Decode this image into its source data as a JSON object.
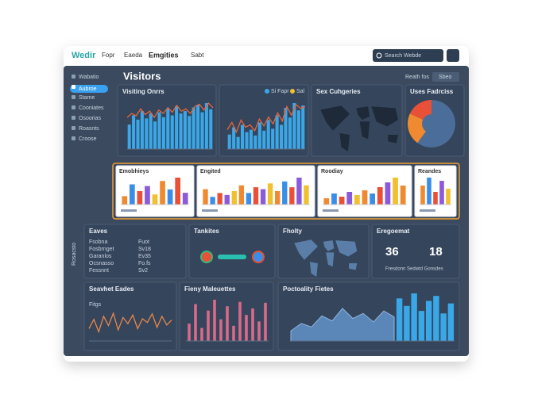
{
  "topbar": {
    "logo": "Wedir",
    "nav": [
      "Fopr",
      "Eaeda",
      "Emgities",
      "Sabt"
    ],
    "search": "Search Webde"
  },
  "sidebar": {
    "items": [
      "Wabatio",
      "Aubroe",
      "Stame",
      "Cooniates",
      "Osoorias",
      "Roasnts",
      "Croose"
    ],
    "footer": "Rosacsto"
  },
  "header": {
    "title": "Visitors",
    "action": "Reath fos",
    "button": "Sbeo"
  },
  "visiting": {
    "title": "Visiting Onrrs",
    "values": [
      40,
      55,
      48,
      62,
      50,
      58,
      45,
      60,
      52,
      66,
      55,
      70,
      58,
      62,
      54,
      68,
      72,
      60,
      75,
      65
    ],
    "line": [
      55,
      62,
      58,
      70,
      60,
      66,
      55,
      68,
      62,
      72,
      64,
      76,
      66,
      70,
      62,
      74,
      78,
      68,
      80,
      72
    ]
  },
  "trend": {
    "legend": [
      "Si Fapr",
      "Sal"
    ],
    "values": [
      30,
      45,
      25,
      50,
      35,
      40,
      28,
      55,
      38,
      60,
      42,
      70,
      50,
      85,
      65,
      95,
      80,
      90
    ],
    "line": [
      40,
      55,
      35,
      60,
      45,
      50,
      38,
      62,
      48,
      66,
      52,
      75,
      58,
      88,
      70,
      92,
      84,
      88
    ]
  },
  "map1": {
    "title": "Sex Cuhgeries"
  },
  "donut": {
    "title": "Uses Fadrciss",
    "values": [
      60,
      22,
      18
    ]
  },
  "cards": [
    {
      "title": "Emobhieys",
      "values": [
        25,
        60,
        40,
        55,
        30,
        70,
        45,
        80,
        35
      ]
    },
    {
      "title": "Engited",
      "values": [
        40,
        20,
        30,
        25,
        35,
        50,
        30,
        45,
        40,
        55,
        35,
        60,
        45,
        70,
        50
      ]
    },
    {
      "title": "Roodiay",
      "values": [
        20,
        35,
        25,
        40,
        30,
        45,
        35,
        55,
        70,
        85,
        60
      ]
    },
    {
      "title": "Reandes",
      "values": [
        60,
        85,
        40,
        75,
        50
      ]
    }
  ],
  "table": {
    "title": "Eaves",
    "rows": [
      [
        "Fsobna",
        "Fuot"
      ],
      [
        "Fosbrnget",
        "Sv18"
      ],
      [
        "Garanlos",
        "Ev35"
      ],
      [
        "Ocsnasso",
        "Fo.fs"
      ],
      [
        "Fessnnt",
        "Sv2"
      ]
    ]
  },
  "tankites": {
    "title": "Tankites"
  },
  "fholty": {
    "title": "Fholty"
  },
  "engagement": {
    "title": "Eregoemat",
    "stats": [
      36,
      18
    ],
    "note": "Fresdonn Sedwtd Gonsdes"
  },
  "seavhet": {
    "title": "Seavhet Eades",
    "label": "Fitgs",
    "values": [
      20,
      35,
      15,
      40,
      25,
      45,
      18,
      38,
      28,
      42,
      20,
      36,
      30,
      44,
      22,
      40,
      26,
      34
    ]
  },
  "fieny": {
    "title": "Fieny Maleuettes",
    "values": [
      40,
      85,
      30,
      70,
      95,
      50,
      80,
      35,
      90,
      60,
      75,
      45,
      88
    ]
  },
  "poct": {
    "title": "Poctoality Fietes",
    "area": [
      20,
      35,
      28,
      50,
      40,
      65,
      45,
      55,
      38,
      60,
      48
    ],
    "bars": [
      85,
      70,
      95,
      60,
      80,
      90,
      55,
      75
    ]
  }
}
